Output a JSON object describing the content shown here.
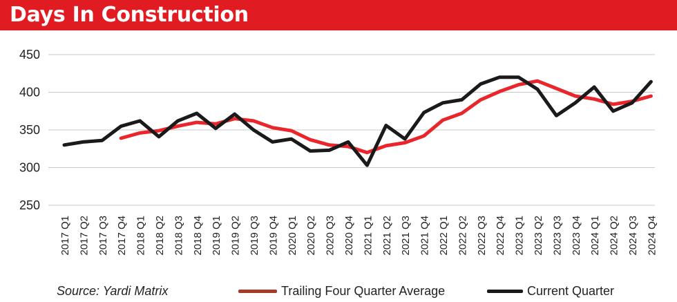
{
  "title": "Days In Construction",
  "source": "Source: Yardi Matrix",
  "colors": {
    "header": "#e11b22",
    "trailing": "#e8262c",
    "current": "#1a1a1a",
    "grid": "#c8c8c8"
  },
  "chart_data": {
    "type": "line",
    "title": "Days In Construction",
    "xlabel": "",
    "ylabel": "",
    "ylim": [
      250,
      450
    ],
    "yticks": [
      250,
      300,
      350,
      400,
      450
    ],
    "grid": true,
    "legend_position": "bottom",
    "categories": [
      "2017 Q1",
      "2017 Q2",
      "2017 Q3",
      "2017 Q4",
      "2018 Q1",
      "2018 Q2",
      "2018 Q3",
      "2018 Q4",
      "2019 Q1",
      "2019 Q2",
      "2019 Q3",
      "2019 Q4",
      "2020 Q1",
      "2020 Q2",
      "2020 Q3",
      "2020 Q4",
      "2021 Q1",
      "2021 Q2",
      "2021 Q3",
      "2021 Q4",
      "2022 Q1",
      "2022 Q2",
      "2022 Q3",
      "2022 Q4",
      "2023 Q1",
      "2023 Q2",
      "2023 Q3",
      "2023 Q4",
      "2024 Q1",
      "2024 Q2",
      "2024 Q3",
      "2024 Q4"
    ],
    "series": [
      {
        "name": "Trailing Four Quarter Average",
        "color": "#e8262c",
        "values": [
          null,
          null,
          null,
          339,
          346,
          349,
          355,
          360,
          358,
          365,
          362,
          353,
          349,
          337,
          330,
          328,
          320,
          329,
          333,
          342,
          363,
          372,
          390,
          401,
          410,
          415,
          405,
          395,
          391,
          384,
          388,
          395
        ]
      },
      {
        "name": "Current Quarter",
        "color": "#1a1a1a",
        "values": [
          330,
          334,
          336,
          355,
          362,
          341,
          362,
          372,
          352,
          371,
          350,
          334,
          338,
          322,
          323,
          334,
          303,
          356,
          338,
          373,
          386,
          390,
          411,
          420,
          420,
          404,
          369,
          386,
          407,
          375,
          386,
          414
        ]
      }
    ]
  }
}
